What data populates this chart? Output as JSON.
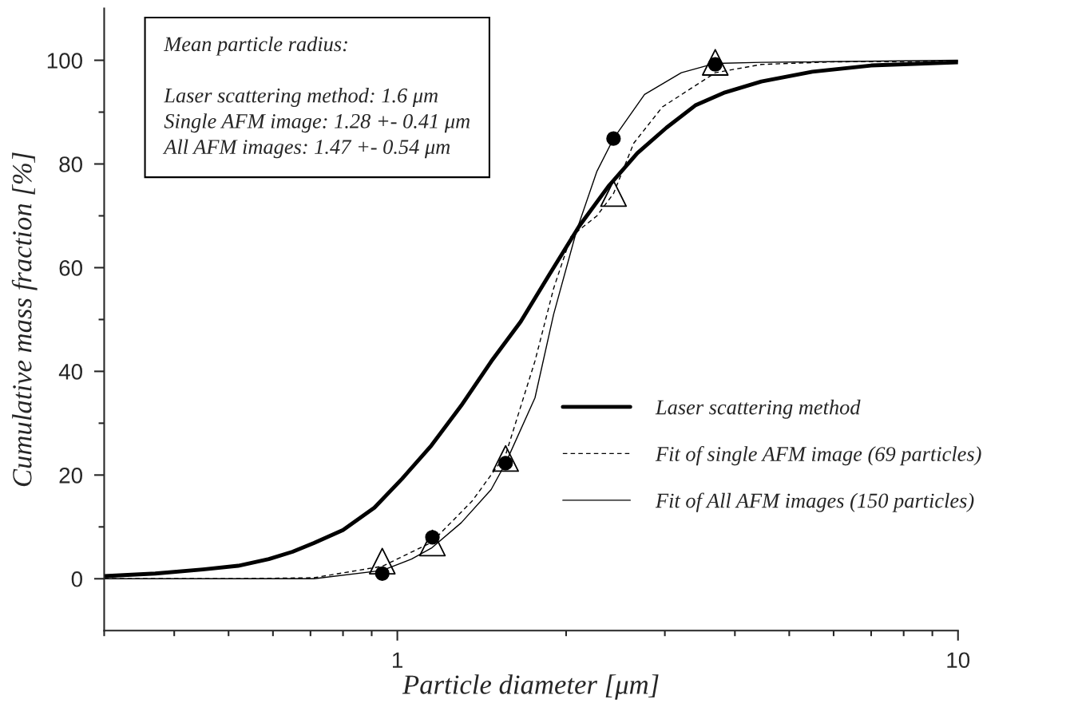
{
  "chart_data": {
    "type": "line",
    "xlabel": "Particle diameter [μm]",
    "ylabel": "Cumulative mass fraction [%]",
    "log": "x",
    "xlim": [
      0.3,
      10
    ],
    "ylim": [
      -10,
      110
    ],
    "xticks": [
      {
        "value": 0.3,
        "label": null
      },
      {
        "value": 0.4,
        "label": null
      },
      {
        "value": 0.5,
        "label": null
      },
      {
        "value": 0.6,
        "label": null
      },
      {
        "value": 0.7,
        "label": null
      },
      {
        "value": 0.8,
        "label": null
      },
      {
        "value": 0.9,
        "label": null
      },
      1,
      {
        "value": 2,
        "label": null
      },
      {
        "value": 3,
        "label": null
      },
      {
        "value": 4,
        "label": null
      },
      {
        "value": 5,
        "label": null
      },
      {
        "value": 6,
        "label": null
      },
      {
        "value": 7,
        "label": null
      },
      {
        "value": 8,
        "label": null
      },
      {
        "value": 9,
        "label": null
      },
      10
    ],
    "yticks": [
      0,
      {
        "value": 10,
        "label": null
      },
      20,
      {
        "value": 30,
        "label": null
      },
      40,
      {
        "value": 50,
        "label": null
      },
      60,
      {
        "value": 70,
        "label": null
      },
      80,
      {
        "value": 90,
        "label": null
      },
      100
    ],
    "grid": false,
    "legend": "lower right",
    "annotations": [
      "Mean particle radius:\n\nLaser scattering method: 1.6 μm\nSingle AFM image: 1.28 +- 0.41 μm\nAll AFM images: 1.47 +- 0.54 μm"
    ],
    "series": [
      {
        "name": "Laser scattering method",
        "color": "#000000",
        "line_style": "solid",
        "marker": "none",
        "x": [
          0.3,
          0.37,
          0.45,
          0.52,
          0.59,
          0.65,
          0.71,
          0.8,
          0.91,
          1.02,
          1.15,
          1.3,
          1.47,
          1.66,
          1.87,
          2.11,
          2.38,
          2.68,
          3.02,
          3.4,
          3.84,
          4.46,
          5.5,
          7,
          10
        ],
        "values": [
          0.5,
          1,
          1.8,
          2.5,
          3.8,
          5.2,
          6.9,
          9.4,
          13.7,
          19.3,
          25.7,
          33.4,
          41.9,
          49.6,
          58.8,
          68,
          75.7,
          82.1,
          87,
          91.3,
          93.8,
          95.9,
          97.8,
          99,
          99.6
        ]
      },
      {
        "name": "Fit of single AFM image (69 particles)",
        "color": "#000000",
        "line_style": "dashed",
        "marker": "none",
        "x": [
          0.3,
          0.5,
          0.71,
          0.94,
          1.15,
          1.36,
          1.56,
          1.76,
          1.9,
          2.04,
          2.27,
          2.43,
          2.64,
          2.97,
          3.69,
          4.46,
          6,
          10
        ],
        "values": [
          0,
          0,
          0.2,
          2.4,
          7,
          15,
          23.9,
          42,
          56,
          66,
          70,
          74.3,
          84,
          91,
          97.6,
          99.2,
          99.7,
          99.8
        ]
      },
      {
        "name": "Fit of All AFM images (150 particles)",
        "color": "#000000",
        "line_style": "solid",
        "marker": "none",
        "x": [
          0.3,
          0.5,
          0.71,
          0.94,
          1.06,
          1.15,
          1.3,
          1.47,
          1.56,
          1.76,
          1.9,
          2.09,
          2.27,
          2.43,
          2.76,
          3.21,
          3.69,
          4.46,
          10
        ],
        "values": [
          0,
          0,
          0,
          1.6,
          3.8,
          5.9,
          10.8,
          17.2,
          22.3,
          34.9,
          51,
          67.3,
          78.6,
          84.9,
          93.4,
          97.6,
          99.4,
          99.6,
          100
        ]
      },
      {
        "type": "scatter",
        "color": "#000000",
        "marker": "circle",
        "x": [
          0.94,
          1.155,
          1.56,
          2.43,
          3.69
        ],
        "values": [
          1,
          8,
          22.3,
          84.9,
          99.2
        ]
      },
      {
        "type": "scatter",
        "color": "#000000",
        "marker": "triangle",
        "x": [
          0.94,
          1.155,
          1.56,
          2.43,
          3.69
        ],
        "values": [
          3.4,
          6.9,
          23.2,
          74.3,
          99.6
        ]
      }
    ]
  }
}
